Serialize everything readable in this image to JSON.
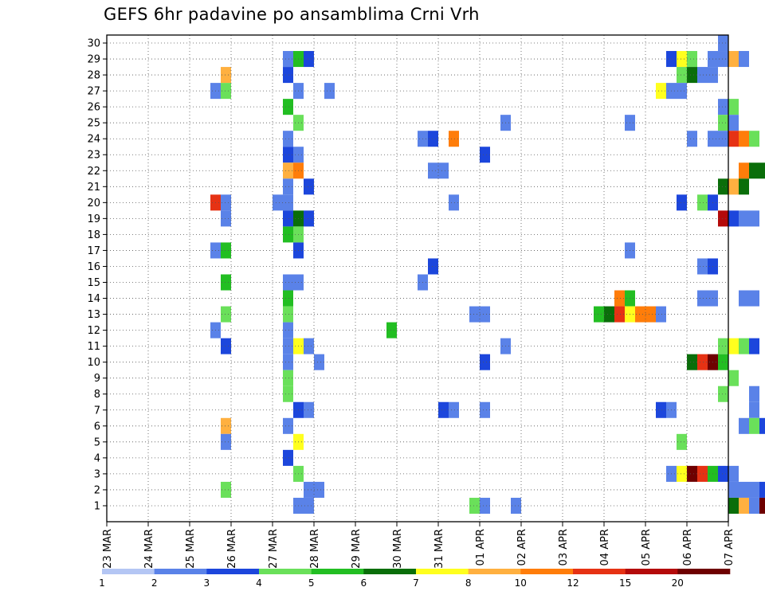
{
  "title": "GEFS 6hr padavine po ansamblima Crni Vrh",
  "chart_data": {
    "type": "heatmap",
    "title": "GEFS 6hr padavine po ansamblima Crni Vrh",
    "x_axis": {
      "tick_labels": [
        "23 MAR",
        "24 MAR",
        "25 MAR",
        "26 MAR",
        "27 MAR",
        "28 MAR",
        "29 MAR",
        "30 MAR",
        "31 MAR",
        "01 APR",
        "02 APR",
        "03 APR",
        "04 APR",
        "05 APR",
        "06 APR",
        "07 APR"
      ],
      "steps_per_day": 4
    },
    "y_axis": {
      "tick_labels": [
        "1",
        "2",
        "3",
        "4",
        "5",
        "6",
        "7",
        "8",
        "9",
        "10",
        "11",
        "12",
        "13",
        "14",
        "15",
        "16",
        "17",
        "18",
        "19",
        "20",
        "21",
        "22",
        "23",
        "24",
        "25",
        "26",
        "27",
        "28",
        "29",
        "30"
      ],
      "rows": 31
    },
    "grid": "dotted",
    "colorbar": {
      "labels": [
        "1",
        "2",
        "3",
        "4",
        "5",
        "6",
        "7",
        "8",
        "10",
        "12",
        "15",
        "20"
      ],
      "colors": [
        "#b4c6f4",
        "#5a82e8",
        "#1c46dc",
        "#6ae05a",
        "#22be22",
        "#0a6e0a",
        "#ffff1e",
        "#ffb040",
        "#ff7d0a",
        "#e63214",
        "#b40a0a",
        "#6e0000"
      ]
    },
    "cells": [
      {
        "row": 30,
        "step": 59,
        "v": 1
      },
      {
        "row": 30,
        "step": 72,
        "v": 8
      },
      {
        "row": 30,
        "step": 73,
        "v": 9
      },
      {
        "row": 30,
        "step": 74,
        "v": 5
      },
      {
        "row": 30,
        "step": 75,
        "v": 2
      },
      {
        "row": 29,
        "step": 17,
        "v": 1
      },
      {
        "row": 29,
        "step": 18,
        "v": 4
      },
      {
        "row": 29,
        "step": 19,
        "v": 2
      },
      {
        "row": 29,
        "step": 54,
        "v": 2
      },
      {
        "row": 29,
        "step": 55,
        "v": 6
      },
      {
        "row": 29,
        "step": 56,
        "v": 3
      },
      {
        "row": 29,
        "step": 58,
        "v": 1
      },
      {
        "row": 29,
        "step": 59,
        "v": 1
      },
      {
        "row": 29,
        "step": 60,
        "v": 7
      },
      {
        "row": 29,
        "step": 61,
        "v": 1
      },
      {
        "row": 28,
        "step": 11,
        "v": 7
      },
      {
        "row": 28,
        "step": 17,
        "v": 2
      },
      {
        "row": 28,
        "step": 55,
        "v": 3
      },
      {
        "row": 28,
        "step": 56,
        "v": 5
      },
      {
        "row": 28,
        "step": 57,
        "v": 1
      },
      {
        "row": 28,
        "step": 58,
        "v": 1
      },
      {
        "row": 27,
        "step": 10,
        "v": 1
      },
      {
        "row": 27,
        "step": 11,
        "v": 3
      },
      {
        "row": 27,
        "step": 18,
        "v": 1
      },
      {
        "row": 27,
        "step": 21,
        "v": 1
      },
      {
        "row": 27,
        "step": 53,
        "v": 6
      },
      {
        "row": 27,
        "step": 54,
        "v": 1
      },
      {
        "row": 27,
        "step": 55,
        "v": 1
      },
      {
        "row": 26,
        "step": 17,
        "v": 4
      },
      {
        "row": 26,
        "step": 59,
        "v": 1
      },
      {
        "row": 26,
        "step": 60,
        "v": 3
      },
      {
        "row": 26,
        "step": 67,
        "v": 2
      },
      {
        "row": 26,
        "step": 68,
        "v": 2
      },
      {
        "row": 26,
        "step": 69,
        "v": 1
      },
      {
        "row": 25,
        "step": 18,
        "v": 3
      },
      {
        "row": 25,
        "step": 38,
        "v": 1
      },
      {
        "row": 25,
        "step": 50,
        "v": 1
      },
      {
        "row": 25,
        "step": 59,
        "v": 3
      },
      {
        "row": 25,
        "step": 60,
        "v": 1
      },
      {
        "row": 24,
        "step": 17,
        "v": 1
      },
      {
        "row": 24,
        "step": 30,
        "v": 1
      },
      {
        "row": 24,
        "step": 31,
        "v": 2
      },
      {
        "row": 24,
        "step": 33,
        "v": 8
      },
      {
        "row": 24,
        "step": 56,
        "v": 1
      },
      {
        "row": 24,
        "step": 58,
        "v": 1
      },
      {
        "row": 24,
        "step": 59,
        "v": 1
      },
      {
        "row": 24,
        "step": 60,
        "v": 9
      },
      {
        "row": 24,
        "step": 61,
        "v": 8
      },
      {
        "row": 24,
        "step": 62,
        "v": 3
      },
      {
        "row": 23,
        "step": 17,
        "v": 2
      },
      {
        "row": 23,
        "step": 18,
        "v": 1
      },
      {
        "row": 23,
        "step": 36,
        "v": 2
      },
      {
        "row": 22,
        "step": 17,
        "v": 7
      },
      {
        "row": 22,
        "step": 18,
        "v": 8
      },
      {
        "row": 22,
        "step": 31,
        "v": 1
      },
      {
        "row": 22,
        "step": 32,
        "v": 1
      },
      {
        "row": 22,
        "step": 61,
        "v": 8
      },
      {
        "row": 22,
        "step": 62,
        "v": 5
      },
      {
        "row": 22,
        "step": 63,
        "v": 5
      },
      {
        "row": 22,
        "step": 64,
        "v": 11
      },
      {
        "row": 22,
        "step": 65,
        "v": 10
      },
      {
        "row": 22,
        "step": 66,
        "v": 5
      },
      {
        "row": 21,
        "step": 17,
        "v": 1
      },
      {
        "row": 21,
        "step": 19,
        "v": 2
      },
      {
        "row": 21,
        "step": 59,
        "v": 5
      },
      {
        "row": 21,
        "step": 60,
        "v": 7
      },
      {
        "row": 21,
        "step": 61,
        "v": 5
      },
      {
        "row": 21,
        "step": 65,
        "v": 1
      },
      {
        "row": 21,
        "step": 66,
        "v": 3
      },
      {
        "row": 21,
        "step": 67,
        "v": 4
      },
      {
        "row": 20,
        "step": 10,
        "v": 9
      },
      {
        "row": 20,
        "step": 11,
        "v": 1
      },
      {
        "row": 20,
        "step": 16,
        "v": 1
      },
      {
        "row": 20,
        "step": 17,
        "v": 1
      },
      {
        "row": 20,
        "step": 33,
        "v": 1
      },
      {
        "row": 20,
        "step": 55,
        "v": 2
      },
      {
        "row": 20,
        "step": 57,
        "v": 3
      },
      {
        "row": 20,
        "step": 58,
        "v": 2
      },
      {
        "row": 19,
        "step": 11,
        "v": 1
      },
      {
        "row": 19,
        "step": 17,
        "v": 2
      },
      {
        "row": 19,
        "step": 18,
        "v": 5
      },
      {
        "row": 19,
        "step": 19,
        "v": 2
      },
      {
        "row": 19,
        "step": 59,
        "v": 10
      },
      {
        "row": 19,
        "step": 60,
        "v": 2
      },
      {
        "row": 19,
        "step": 61,
        "v": 1
      },
      {
        "row": 19,
        "step": 62,
        "v": 1
      },
      {
        "row": 18,
        "step": 17,
        "v": 4
      },
      {
        "row": 18,
        "step": 18,
        "v": 3
      },
      {
        "row": 18,
        "step": 68,
        "v": 4
      },
      {
        "row": 18,
        "step": 69,
        "v": 2
      },
      {
        "row": 18,
        "step": 70,
        "v": 8
      },
      {
        "row": 18,
        "step": 71,
        "v": 2
      },
      {
        "row": 18,
        "step": 72,
        "v": 4
      },
      {
        "row": 18,
        "step": 73,
        "v": 3
      },
      {
        "row": 17,
        "step": 10,
        "v": 1
      },
      {
        "row": 17,
        "step": 11,
        "v": 4
      },
      {
        "row": 17,
        "step": 18,
        "v": 2
      },
      {
        "row": 17,
        "step": 50,
        "v": 1
      },
      {
        "row": 17,
        "step": 72,
        "v": 1
      },
      {
        "row": 17,
        "step": 73,
        "v": 1
      },
      {
        "row": 16,
        "step": 31,
        "v": 2
      },
      {
        "row": 16,
        "step": 57,
        "v": 1
      },
      {
        "row": 16,
        "step": 58,
        "v": 2
      },
      {
        "row": 16,
        "step": 69,
        "v": 1
      },
      {
        "row": 16,
        "step": 70,
        "v": 1
      },
      {
        "row": 15,
        "step": 11,
        "v": 4
      },
      {
        "row": 15,
        "step": 17,
        "v": 1
      },
      {
        "row": 15,
        "step": 18,
        "v": 1
      },
      {
        "row": 15,
        "step": 30,
        "v": 1
      },
      {
        "row": 15,
        "step": 66,
        "v": 2
      },
      {
        "row": 15,
        "step": 73,
        "v": 4
      },
      {
        "row": 14,
        "step": 17,
        "v": 4
      },
      {
        "row": 14,
        "step": 49,
        "v": 8
      },
      {
        "row": 14,
        "step": 50,
        "v": 4
      },
      {
        "row": 14,
        "step": 57,
        "v": 1
      },
      {
        "row": 14,
        "step": 58,
        "v": 1
      },
      {
        "row": 14,
        "step": 61,
        "v": 1
      },
      {
        "row": 14,
        "step": 62,
        "v": 1
      },
      {
        "row": 13,
        "step": 11,
        "v": 3
      },
      {
        "row": 13,
        "step": 17,
        "v": 3
      },
      {
        "row": 13,
        "step": 35,
        "v": 1
      },
      {
        "row": 13,
        "step": 36,
        "v": 1
      },
      {
        "row": 13,
        "step": 47,
        "v": 4
      },
      {
        "row": 13,
        "step": 48,
        "v": 5
      },
      {
        "row": 13,
        "step": 49,
        "v": 9
      },
      {
        "row": 13,
        "step": 50,
        "v": 6
      },
      {
        "row": 13,
        "step": 51,
        "v": 8
      },
      {
        "row": 13,
        "step": 52,
        "v": 8
      },
      {
        "row": 13,
        "step": 53,
        "v": 1
      },
      {
        "row": 13,
        "step": 65,
        "v": 2
      },
      {
        "row": 12,
        "step": 10,
        "v": 1
      },
      {
        "row": 12,
        "step": 17,
        "v": 1
      },
      {
        "row": 12,
        "step": 27,
        "v": 4
      },
      {
        "row": 12,
        "step": 73,
        "v": 1
      },
      {
        "row": 11,
        "step": 11,
        "v": 2
      },
      {
        "row": 11,
        "step": 17,
        "v": 1
      },
      {
        "row": 11,
        "step": 18,
        "v": 6
      },
      {
        "row": 11,
        "step": 19,
        "v": 1
      },
      {
        "row": 11,
        "step": 38,
        "v": 1
      },
      {
        "row": 11,
        "step": 59,
        "v": 3
      },
      {
        "row": 11,
        "step": 60,
        "v": 6
      },
      {
        "row": 11,
        "step": 61,
        "v": 3
      },
      {
        "row": 11,
        "step": 62,
        "v": 2
      },
      {
        "row": 11,
        "step": 67,
        "v": 7
      },
      {
        "row": 11,
        "step": 68,
        "v": 5
      },
      {
        "row": 11,
        "step": 69,
        "v": 2
      },
      {
        "row": 11,
        "step": 71,
        "v": 3
      },
      {
        "row": 11,
        "step": 73,
        "v": 2
      },
      {
        "row": 11,
        "step": 74,
        "v": 1
      },
      {
        "row": 10,
        "step": 17,
        "v": 1
      },
      {
        "row": 10,
        "step": 20,
        "v": 1
      },
      {
        "row": 10,
        "step": 36,
        "v": 2
      },
      {
        "row": 10,
        "step": 56,
        "v": 5
      },
      {
        "row": 10,
        "step": 57,
        "v": 9
      },
      {
        "row": 10,
        "step": 58,
        "v": 11
      },
      {
        "row": 10,
        "step": 59,
        "v": 4
      },
      {
        "row": 9,
        "step": 17,
        "v": 3
      },
      {
        "row": 9,
        "step": 60,
        "v": 3
      },
      {
        "row": 9,
        "step": 66,
        "v": 1
      },
      {
        "row": 9,
        "step": 67,
        "v": 4
      },
      {
        "row": 9,
        "step": 74,
        "v": 7
      },
      {
        "row": 8,
        "step": 17,
        "v": 3
      },
      {
        "row": 8,
        "step": 59,
        "v": 3
      },
      {
        "row": 8,
        "step": 62,
        "v": 1
      },
      {
        "row": 7,
        "step": 18,
        "v": 2
      },
      {
        "row": 7,
        "step": 19,
        "v": 1
      },
      {
        "row": 7,
        "step": 32,
        "v": 2
      },
      {
        "row": 7,
        "step": 33,
        "v": 1
      },
      {
        "row": 7,
        "step": 36,
        "v": 1
      },
      {
        "row": 7,
        "step": 53,
        "v": 2
      },
      {
        "row": 7,
        "step": 54,
        "v": 1
      },
      {
        "row": 7,
        "step": 62,
        "v": 1
      },
      {
        "row": 6,
        "step": 11,
        "v": 7
      },
      {
        "row": 6,
        "step": 17,
        "v": 1
      },
      {
        "row": 6,
        "step": 61,
        "v": 1
      },
      {
        "row": 6,
        "step": 62,
        "v": 3
      },
      {
        "row": 6,
        "step": 63,
        "v": 2
      },
      {
        "row": 6,
        "step": 64,
        "v": 1
      },
      {
        "row": 5,
        "step": 11,
        "v": 1
      },
      {
        "row": 5,
        "step": 18,
        "v": 6
      },
      {
        "row": 5,
        "step": 55,
        "v": 3
      },
      {
        "row": 4,
        "step": 17,
        "v": 2
      },
      {
        "row": 3,
        "step": 18,
        "v": 3
      },
      {
        "row": 3,
        "step": 54,
        "v": 1
      },
      {
        "row": 3,
        "step": 55,
        "v": 6
      },
      {
        "row": 3,
        "step": 56,
        "v": 11
      },
      {
        "row": 3,
        "step": 57,
        "v": 9
      },
      {
        "row": 3,
        "step": 58,
        "v": 4
      },
      {
        "row": 3,
        "step": 59,
        "v": 2
      },
      {
        "row": 3,
        "step": 60,
        "v": 1
      },
      {
        "row": 2,
        "step": 11,
        "v": 3
      },
      {
        "row": 2,
        "step": 19,
        "v": 1
      },
      {
        "row": 2,
        "step": 20,
        "v": 1
      },
      {
        "row": 2,
        "step": 60,
        "v": 1
      },
      {
        "row": 2,
        "step": 61,
        "v": 1
      },
      {
        "row": 2,
        "step": 62,
        "v": 1
      },
      {
        "row": 2,
        "step": 63,
        "v": 2
      },
      {
        "row": 2,
        "step": 64,
        "v": 7
      },
      {
        "row": 2,
        "step": 66,
        "v": 2
      },
      {
        "row": 2,
        "step": 67,
        "v": 2
      },
      {
        "row": 1,
        "step": 18,
        "v": 1
      },
      {
        "row": 1,
        "step": 19,
        "v": 1
      },
      {
        "row": 1,
        "step": 35,
        "v": 3
      },
      {
        "row": 1,
        "step": 36,
        "v": 1
      },
      {
        "row": 1,
        "step": 39,
        "v": 1
      },
      {
        "row": 1,
        "step": 60,
        "v": 5
      },
      {
        "row": 1,
        "step": 61,
        "v": 7
      },
      {
        "row": 1,
        "step": 62,
        "v": 1
      },
      {
        "row": 1,
        "step": 63,
        "v": 11
      },
      {
        "row": 1,
        "step": 64,
        "v": 3
      }
    ]
  }
}
